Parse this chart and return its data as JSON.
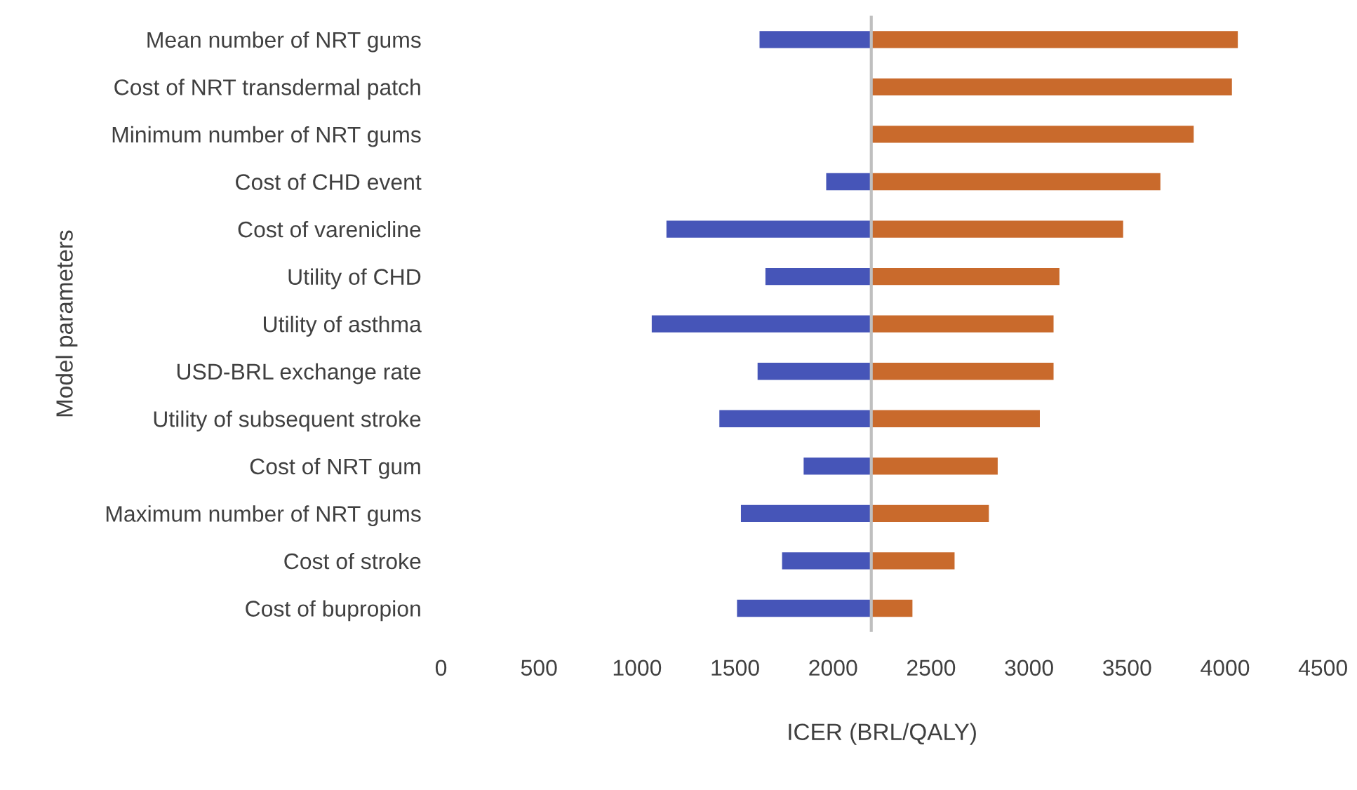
{
  "chart_data": {
    "type": "bar",
    "orientation": "horizontal",
    "xlabel": "ICER (BRL/QALY)",
    "ylabel": "Model parameters",
    "categories": [
      "Mean number of NRT gums",
      "Cost of NRT transdermal patch",
      "Minimum number of NRT gums",
      "Cost of CHD event",
      "Cost of varenicline",
      "Utility of CHD",
      "Utility of asthma",
      "USD-BRL exchange rate",
      "Utility of subsequent stroke",
      "Cost of NRT gum",
      "Maximum number of NRT gums",
      "Cost of stroke",
      "Cost of bupropion"
    ],
    "series": [
      {
        "color": "#4655b8",
        "base": [
          1625,
          null,
          null,
          1965,
          1150,
          1655,
          1075,
          1615,
          1420,
          1850,
          1530,
          1740,
          1510
        ],
        "values": [
          570,
          null,
          null,
          230,
          1045,
          540,
          1120,
          580,
          775,
          345,
          665,
          455,
          685
        ]
      },
      {
        "color": "#c96a2c",
        "base": [
          2195,
          2195,
          2195,
          2195,
          2195,
          2195,
          2195,
          2195,
          2195,
          2195,
          2195,
          2195,
          2195
        ],
        "values": [
          1870,
          1840,
          1645,
          1475,
          1285,
          960,
          930,
          930,
          860,
          645,
          600,
          425,
          210
        ]
      }
    ],
    "xlim": [
      0,
      4500
    ],
    "xticks": [
      0,
      500,
      1000,
      1500,
      2000,
      2500,
      3000,
      3500,
      4000,
      4500
    ],
    "ref_lines": [
      {
        "axis": "x",
        "value": 2195,
        "color": "#bfbfbf"
      }
    ],
    "grid": false,
    "legend": false
  }
}
